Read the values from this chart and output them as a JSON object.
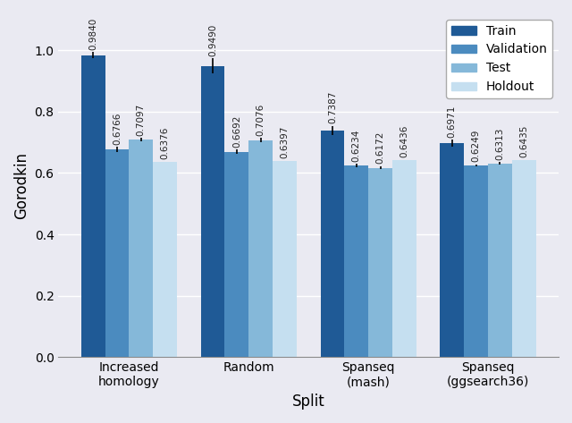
{
  "categories": [
    "Increased\nhomology",
    "Random",
    "Spanseq\n(mash)",
    "Spanseq\n(ggsearch36)"
  ],
  "series": [
    "Train",
    "Validation",
    "Test",
    "Holdout"
  ],
  "values": [
    [
      0.984,
      0.6766,
      0.7097,
      0.6376
    ],
    [
      0.949,
      0.6692,
      0.7076,
      0.6397
    ],
    [
      0.7387,
      0.6234,
      0.6172,
      0.6436
    ],
    [
      0.6971,
      0.6249,
      0.6313,
      0.6435
    ]
  ],
  "errors": [
    [
      0.01,
      0.008,
      0.005,
      0.0
    ],
    [
      0.025,
      0.007,
      0.007,
      0.0
    ],
    [
      0.015,
      0.006,
      0.005,
      0.0
    ],
    [
      0.012,
      0.004,
      0.004,
      0.0
    ]
  ],
  "colors": [
    "#1f5a96",
    "#4b8bbf",
    "#85b8d9",
    "#c5dff0"
  ],
  "ylabel": "Gorodkin",
  "xlabel": "Split",
  "ylim": [
    0.0,
    1.12
  ],
  "yticks": [
    0.0,
    0.2,
    0.4,
    0.6,
    0.8,
    1.0
  ],
  "bar_width": 0.2,
  "legend_labels": [
    "Train",
    "Validation",
    "Test",
    "Holdout"
  ],
  "label_fontsize": 10,
  "value_label_fontsize": 7.5,
  "axis_label_fontsize": 12,
  "background_color": "#eaeaf2",
  "grid_color": "#ffffff",
  "fig_bg_color": "#eaeaf2"
}
